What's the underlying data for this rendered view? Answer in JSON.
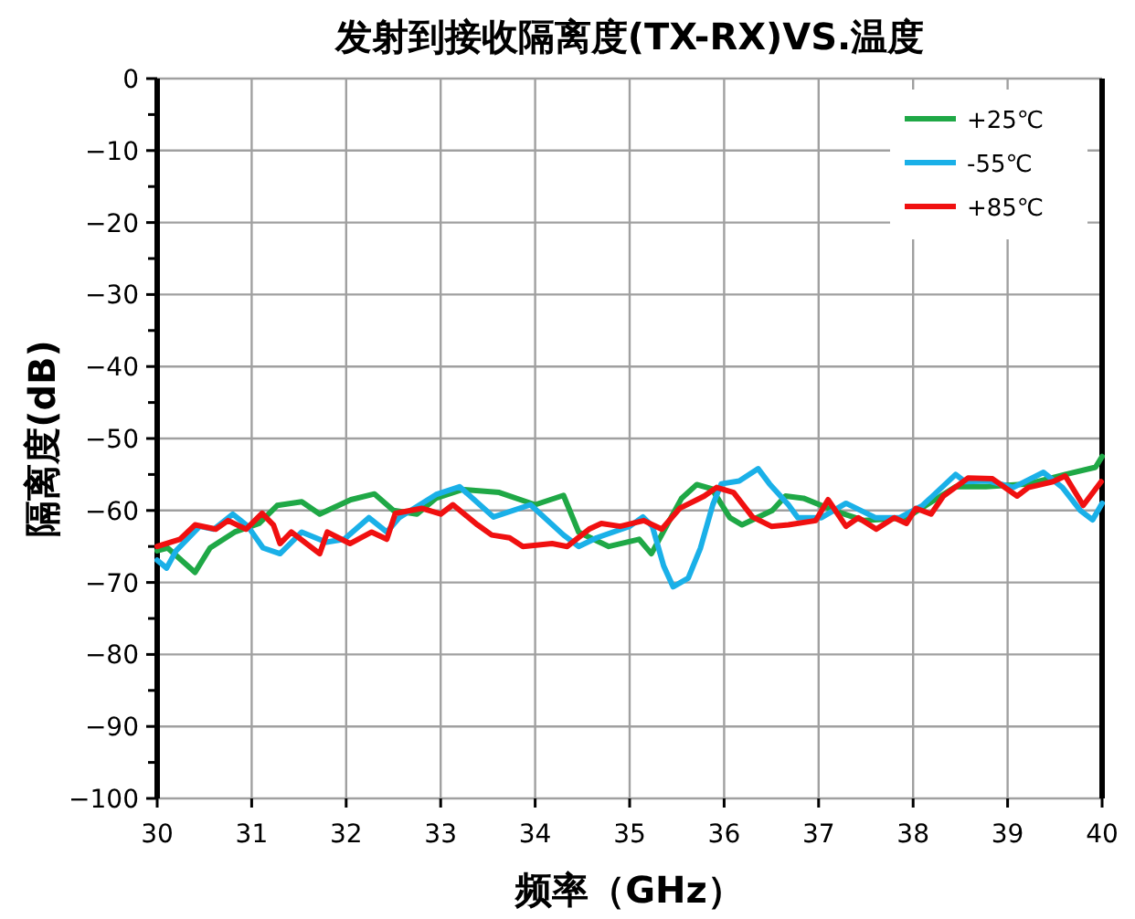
{
  "chart_data": {
    "type": "line",
    "title": "发射到接收隔离度(TX-RX)VS.温度",
    "xlabel": "频率（GHz）",
    "ylabel": "隔离度(dB)",
    "xlim": [
      30,
      40
    ],
    "xticks": [
      30,
      31,
      32,
      33,
      34,
      35,
      36,
      37,
      38,
      39,
      40
    ],
    "ylim": [
      -100,
      0
    ],
    "yticks": [
      0,
      {
        "value": -5,
        "label": null
      },
      -10,
      {
        "value": -15,
        "label": null
      },
      -20,
      {
        "value": -25,
        "label": null
      },
      -30,
      {
        "value": -35,
        "label": null
      },
      -40,
      {
        "value": -45,
        "label": null
      },
      -50,
      {
        "value": -55,
        "label": null
      },
      -60,
      {
        "value": -65,
        "label": null
      },
      -70,
      {
        "value": -75,
        "label": null
      },
      -80,
      {
        "value": -85,
        "label": null
      },
      -90,
      {
        "value": -95,
        "label": null
      },
      -100
    ],
    "grid": true,
    "legend": "top right",
    "series": [
      {
        "name": "+25℃",
        "color": "#1fa846",
        "x": [
          30.0,
          30.11,
          30.4,
          30.56,
          30.82,
          31.08,
          31.27,
          31.53,
          31.72,
          32.05,
          32.3,
          32.5,
          32.75,
          32.95,
          33.23,
          33.62,
          34.0,
          34.3,
          34.46,
          34.78,
          35.1,
          35.23,
          35.55,
          35.71,
          35.87,
          36.06,
          36.19,
          36.51,
          36.65,
          36.84,
          37.16,
          37.48,
          37.93,
          38.45,
          38.77,
          39.22,
          39.61,
          39.93,
          40.0
        ],
        "values": [
          -65.6,
          -65.2,
          -68.6,
          -65.2,
          -63,
          -61.8,
          -59.3,
          -58.8,
          -60.5,
          -58.5,
          -57.7,
          -60,
          -60.5,
          -58.3,
          -57.1,
          -57.5,
          -59.2,
          -57.9,
          -63,
          -65,
          -64,
          -66,
          -58.3,
          -56.4,
          -57,
          -61,
          -62,
          -60,
          -58,
          -58.3,
          -60,
          -61.4,
          -61,
          -56.7,
          -56.7,
          -56.3,
          -55,
          -54,
          -52.5
        ]
      },
      {
        "name": "-55℃",
        "color": "#1ab0e8",
        "x": [
          30.0,
          30.1,
          30.2,
          30.45,
          30.6,
          30.8,
          30.96,
          31.12,
          31.3,
          31.53,
          31.79,
          31.98,
          32.24,
          32.43,
          32.56,
          32.95,
          33.2,
          33.56,
          33.95,
          34.3,
          34.46,
          34.65,
          35.0,
          35.14,
          35.24,
          35.36,
          35.46,
          35.62,
          35.75,
          35.88,
          35.97,
          36.16,
          36.36,
          36.48,
          36.68,
          36.78,
          37.03,
          37.29,
          37.6,
          37.86,
          38.1,
          38.45,
          38.55,
          38.8,
          39.06,
          39.38,
          39.58,
          39.77,
          39.9,
          40.0
        ],
        "values": [
          -66.9,
          -68,
          -65.6,
          -62.2,
          -62.6,
          -60.5,
          -62.2,
          -65.2,
          -66,
          -63,
          -64.4,
          -64,
          -61,
          -63,
          -61,
          -57.8,
          -56.7,
          -60.9,
          -59.2,
          -63.4,
          -65,
          -63.8,
          -62.2,
          -60.9,
          -62.2,
          -67.7,
          -70.6,
          -69.4,
          -65.2,
          -59.2,
          -56.3,
          -55.9,
          -54.2,
          -56.3,
          -59.2,
          -61,
          -61,
          -59,
          -61,
          -61,
          -59.3,
          -55,
          -56,
          -55.9,
          -56.8,
          -54.7,
          -56.8,
          -60,
          -61.3,
          -59
        ]
      },
      {
        "name": "+85℃",
        "color": "#f01010",
        "x": [
          30.0,
          30.24,
          30.4,
          30.62,
          30.75,
          30.94,
          31.11,
          31.23,
          31.3,
          31.42,
          31.72,
          31.8,
          32.04,
          32.27,
          32.43,
          32.52,
          32.8,
          33.0,
          33.13,
          33.39,
          33.54,
          33.73,
          33.87,
          34.18,
          34.34,
          34.57,
          34.7,
          34.9,
          35.15,
          35.34,
          35.53,
          35.79,
          35.92,
          36.1,
          36.3,
          36.5,
          36.68,
          36.97,
          37.1,
          37.29,
          37.42,
          37.61,
          37.8,
          37.93,
          38.03,
          38.19,
          38.32,
          38.58,
          38.84,
          39.1,
          39.22,
          39.48,
          39.61,
          39.8,
          39.99
        ],
        "values": [
          -65,
          -64,
          -62,
          -62.6,
          -61.4,
          -62.6,
          -60.4,
          -62,
          -64.6,
          -63,
          -66,
          -63,
          -64.6,
          -63,
          -64,
          -60.4,
          -59.7,
          -60.5,
          -59.2,
          -62,
          -63.4,
          -63.8,
          -65,
          -64.6,
          -65,
          -62.6,
          -61.8,
          -62.2,
          -61.4,
          -62.6,
          -59.7,
          -58,
          -56.8,
          -57.5,
          -60.9,
          -62.2,
          -62,
          -61.4,
          -58.5,
          -62.2,
          -61,
          -62.6,
          -61,
          -61.8,
          -59.7,
          -60.5,
          -58,
          -55.5,
          -55.6,
          -58,
          -56.8,
          -56,
          -55.2,
          -59.3,
          -56
        ]
      }
    ]
  }
}
